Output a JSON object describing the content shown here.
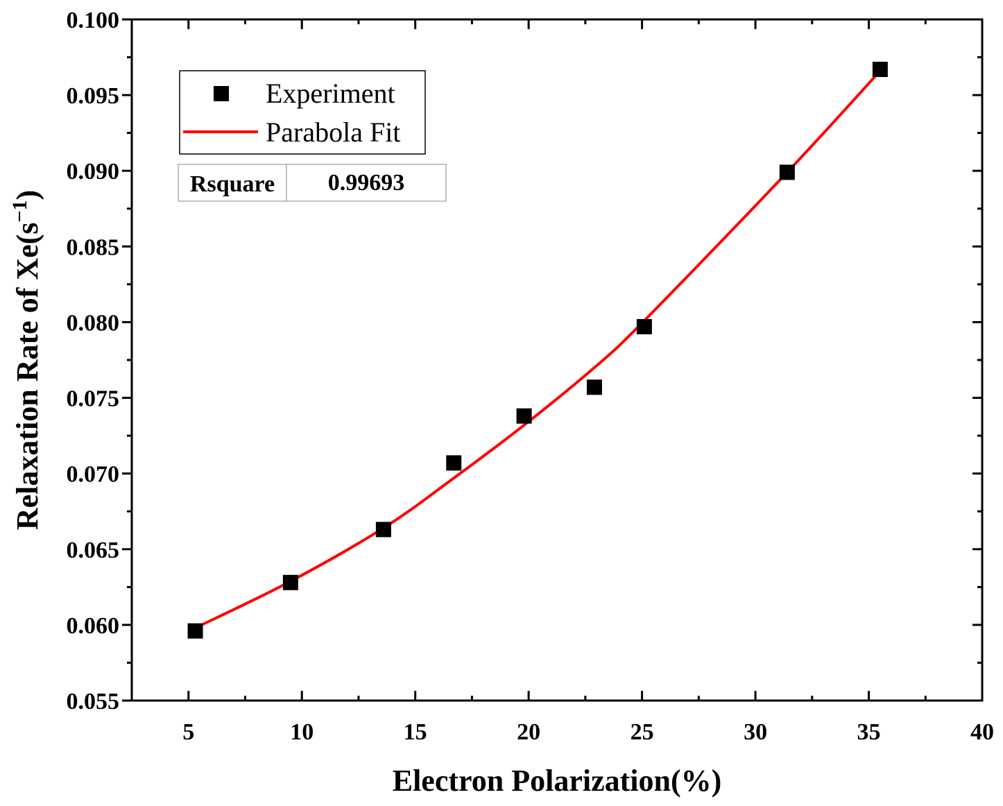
{
  "chart_data": {
    "type": "scatter",
    "xlabel": "Electron Polarization(%)",
    "ylabel_main": "Relaxation Rate of Xe(s",
    "ylabel_sup": "−1",
    "ylabel_close": ")",
    "xlim": [
      2.5,
      40
    ],
    "ylim": [
      0.055,
      0.1
    ],
    "x_ticks": [
      5,
      10,
      15,
      20,
      25,
      30,
      35,
      40
    ],
    "y_ticks": [
      0.055,
      0.06,
      0.065,
      0.07,
      0.075,
      0.08,
      0.085,
      0.09,
      0.095,
      0.1
    ],
    "x_tick_labels": [
      "5",
      "10",
      "15",
      "20",
      "25",
      "30",
      "35",
      "40"
    ],
    "y_tick_labels": [
      "0.055",
      "0.060",
      "0.065",
      "0.070",
      "0.075",
      "0.080",
      "0.085",
      "0.090",
      "0.095",
      "0.100"
    ],
    "series": [
      {
        "name": "Experiment",
        "kind": "points",
        "color": "#000000",
        "x": [
          5.3,
          9.5,
          13.6,
          16.7,
          19.8,
          22.9,
          25.1,
          31.4,
          35.5
        ],
        "y": [
          0.0596,
          0.0628,
          0.0663,
          0.0707,
          0.0738,
          0.0757,
          0.0797,
          0.0899,
          0.0967
        ]
      },
      {
        "name": "Parabola Fit",
        "kind": "line",
        "color": "#ff0000",
        "x": [
          5.3,
          9.4,
          13.6,
          16.7,
          19.8,
          22.9,
          25.1,
          31.4,
          35.5
        ],
        "y": [
          0.0598,
          0.0628,
          0.0664,
          0.0697,
          0.0732,
          0.077,
          0.0801,
          0.0899,
          0.0966
        ]
      }
    ],
    "fit_stats": {
      "label": "Rsquare",
      "value": "0.99693"
    },
    "legend_position": "top-left",
    "grid": false
  }
}
